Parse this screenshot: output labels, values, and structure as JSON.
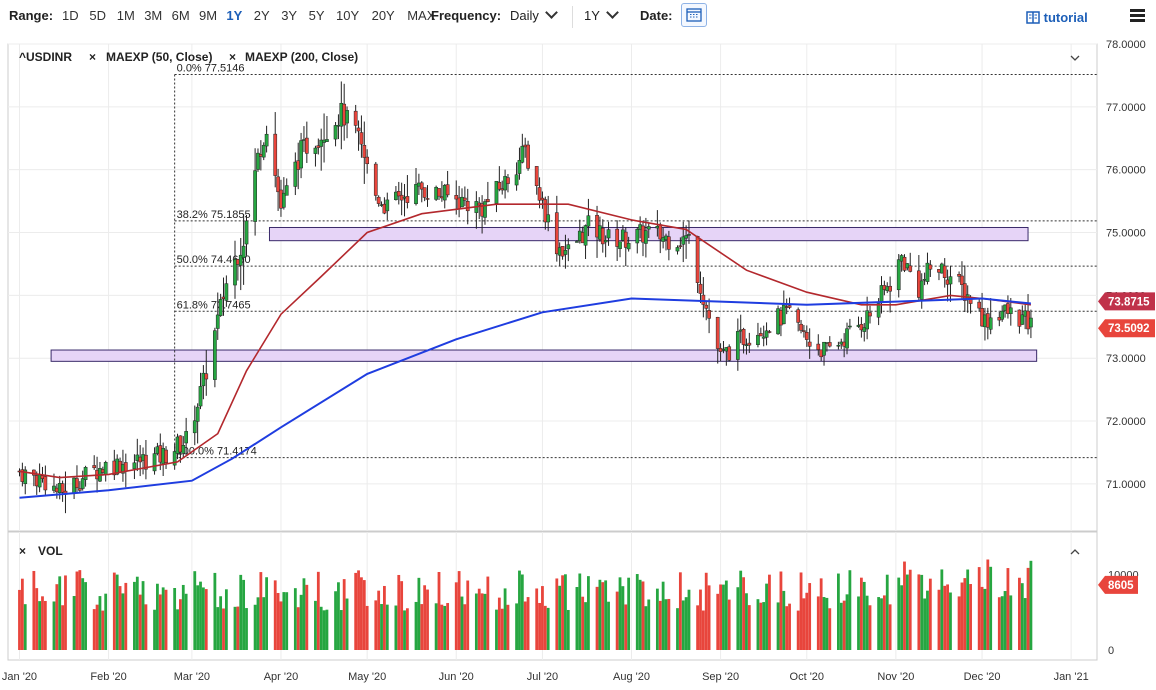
{
  "toolbar": {
    "range_label": "Range:",
    "ranges": [
      "1D",
      "5D",
      "1M",
      "3M",
      "6M",
      "9M",
      "1Y",
      "2Y",
      "3Y",
      "5Y",
      "10Y",
      "20Y",
      "MAX"
    ],
    "active_range": "1Y",
    "frequency_label": "Frequency:",
    "frequency_value": "Daily",
    "period_value": "1Y",
    "date_label": "Date:",
    "tutorial_label": "tutorial"
  },
  "legend": {
    "symbol": "^USDINR",
    "study1": "MAEXP (50, Close)",
    "study2": "MAEXP (200, Close)",
    "close_symbol": "×"
  },
  "price_labels": {
    "ma200": "73.8715",
    "last": "73.5092",
    "volume": "8605"
  },
  "vol_label": "VOL",
  "colors": {
    "up": "#26a641",
    "down": "#e8453c",
    "ma50": "#b3282d",
    "ma200": "#1f3de0",
    "zone_fill": "#e6d4f7",
    "zone_stroke": "#3a2a6a"
  },
  "chart_data": {
    "type": "candlestick",
    "symbol": "^USDINR",
    "ylim": [
      70.25,
      78.0
    ],
    "y_ticks": [
      "78.0000",
      "77.0000",
      "76.0000",
      "75.0000",
      "74.0000",
      "73.0000",
      "72.0000",
      "71.0000"
    ],
    "y_tick_values": [
      78,
      77,
      76,
      75,
      74,
      73,
      72,
      71
    ],
    "x_ticks": [
      "Jan '20",
      "Feb '20",
      "Mar '20",
      "Apr '20",
      "May '20",
      "Jun '20",
      "Jul '20",
      "Aug '20",
      "Sep '20",
      "Oct '20",
      "Nov '20",
      "Dec '20",
      "Jan '21"
    ],
    "x_tick_dates": [
      "2020-01-01",
      "2020-02-01",
      "2020-03-01",
      "2020-04-01",
      "2020-05-01",
      "2020-06-01",
      "2020-07-01",
      "2020-08-01",
      "2020-09-01",
      "2020-10-01",
      "2020-11-01",
      "2020-12-01",
      "2021-01-01"
    ],
    "x_range": [
      "2019-12-28",
      "2021-01-10"
    ],
    "fibonacci": [
      {
        "label": "0.0% 77.5146",
        "value": 77.5146
      },
      {
        "label": "38.2% 75.1855",
        "value": 75.1855
      },
      {
        "label": "50.0% 74.4660",
        "value": 74.466
      },
      {
        "label": "61.8% 73.7465",
        "value": 73.7465
      },
      {
        "label": "100.0% 71.4174",
        "value": 71.4174
      }
    ],
    "fib_start_date": "2020-02-24",
    "zones": [
      {
        "from_date": "2020-03-28",
        "to_date": "2020-12-17",
        "low": 74.87,
        "high": 75.08
      },
      {
        "from_date": "2020-01-12",
        "to_date": "2020-12-20",
        "low": 72.95,
        "high": 73.13
      }
    ],
    "close_path": [
      [
        "2020-01-01",
        71.2
      ],
      [
        "2020-01-10",
        71.05
      ],
      [
        "2020-01-15",
        70.85
      ],
      [
        "2020-01-23",
        71.1
      ],
      [
        "2020-01-31",
        71.3
      ],
      [
        "2020-02-10",
        71.35
      ],
      [
        "2020-02-20",
        71.45
      ],
      [
        "2020-02-28",
        71.7
      ],
      [
        "2020-03-05",
        72.6
      ],
      [
        "2020-03-10",
        73.6
      ],
      [
        "2020-03-13",
        74.2
      ],
      [
        "2020-03-19",
        74.9
      ],
      [
        "2020-03-24",
        76.2
      ],
      [
        "2020-03-27",
        76.7
      ],
      [
        "2020-04-01",
        75.4
      ],
      [
        "2020-04-08",
        76.3
      ],
      [
        "2020-04-16",
        76.6
      ],
      [
        "2020-04-22",
        76.9
      ],
      [
        "2020-04-27",
        76.6
      ],
      [
        "2020-05-04",
        75.6
      ],
      [
        "2020-05-08",
        75.4
      ],
      [
        "2020-05-14",
        75.6
      ],
      [
        "2020-05-20",
        75.7
      ],
      [
        "2020-05-27",
        75.6
      ],
      [
        "2020-06-03",
        75.5
      ],
      [
        "2020-06-10",
        75.4
      ],
      [
        "2020-06-18",
        75.8
      ],
      [
        "2020-06-25",
        76.3
      ],
      [
        "2020-06-30",
        75.6
      ],
      [
        "2020-07-06",
        74.8
      ],
      [
        "2020-07-10",
        74.7
      ],
      [
        "2020-07-17",
        75.1
      ],
      [
        "2020-07-24",
        74.9
      ],
      [
        "2020-07-31",
        74.9
      ],
      [
        "2020-08-07",
        75.0
      ],
      [
        "2020-08-14",
        74.9
      ],
      [
        "2020-08-21",
        74.9
      ],
      [
        "2020-08-27",
        73.8
      ],
      [
        "2020-09-01",
        73.0
      ],
      [
        "2020-09-08",
        73.3
      ],
      [
        "2020-09-16",
        73.5
      ],
      [
        "2020-09-24",
        73.7
      ],
      [
        "2020-10-01",
        73.3
      ],
      [
        "2020-10-08",
        73.1
      ],
      [
        "2020-10-16",
        73.4
      ],
      [
        "2020-10-23",
        73.7
      ],
      [
        "2020-10-30",
        74.2
      ],
      [
        "2020-11-03",
        74.6
      ],
      [
        "2020-11-09",
        74.1
      ],
      [
        "2020-11-14",
        74.5
      ],
      [
        "2020-11-20",
        74.3
      ],
      [
        "2020-11-27",
        73.95
      ],
      [
        "2020-12-02",
        73.6
      ],
      [
        "2020-12-08",
        73.75
      ],
      [
        "2020-12-14",
        73.65
      ],
      [
        "2020-12-18",
        73.51
      ]
    ],
    "series": [
      {
        "name": "MAEXP (50, Close)",
        "points": [
          [
            "2020-01-01",
            71.2
          ],
          [
            "2020-01-15",
            71.1
          ],
          [
            "2020-02-01",
            71.15
          ],
          [
            "2020-02-25",
            71.35
          ],
          [
            "2020-03-10",
            71.8
          ],
          [
            "2020-03-20",
            72.8
          ],
          [
            "2020-04-01",
            73.7
          ],
          [
            "2020-04-15",
            74.3
          ],
          [
            "2020-05-01",
            75.0
          ],
          [
            "2020-05-20",
            75.3
          ],
          [
            "2020-06-15",
            75.45
          ],
          [
            "2020-07-10",
            75.45
          ],
          [
            "2020-08-01",
            75.2
          ],
          [
            "2020-08-20",
            75.05
          ],
          [
            "2020-09-10",
            74.4
          ],
          [
            "2020-10-01",
            74.05
          ],
          [
            "2020-10-20",
            73.85
          ],
          [
            "2020-11-01",
            73.85
          ],
          [
            "2020-11-20",
            74.0
          ],
          [
            "2020-12-01",
            73.95
          ],
          [
            "2020-12-18",
            73.85
          ]
        ]
      },
      {
        "name": "MAEXP (200, Close)",
        "points": [
          [
            "2020-01-01",
            70.78
          ],
          [
            "2020-02-01",
            70.9
          ],
          [
            "2020-03-01",
            71.05
          ],
          [
            "2020-03-15",
            71.4
          ],
          [
            "2020-04-01",
            71.9
          ],
          [
            "2020-05-01",
            72.75
          ],
          [
            "2020-06-01",
            73.3
          ],
          [
            "2020-07-01",
            73.73
          ],
          [
            "2020-08-01",
            73.95
          ],
          [
            "2020-09-01",
            73.9
          ],
          [
            "2020-10-01",
            73.85
          ],
          [
            "2020-11-01",
            73.9
          ],
          [
            "2020-12-01",
            73.95
          ],
          [
            "2020-12-18",
            73.87
          ]
        ]
      }
    ],
    "last_ma200": 73.8715,
    "last_close": 73.5092,
    "volume": {
      "ylim": [
        0,
        14000
      ],
      "ticks": [
        "10000",
        "0"
      ],
      "tick_values": [
        10000,
        0
      ],
      "last": 8605
    }
  }
}
